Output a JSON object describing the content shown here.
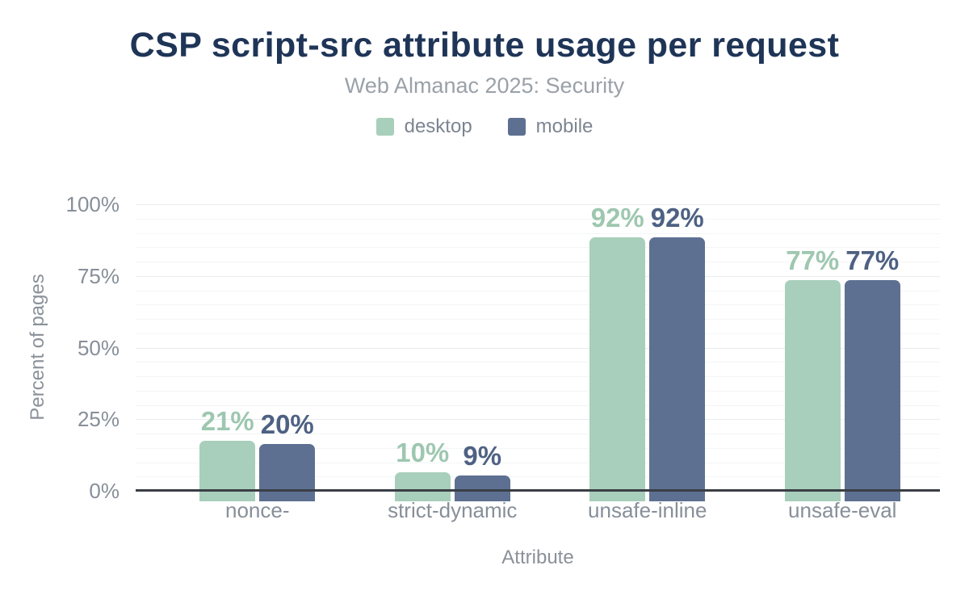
{
  "header": {
    "title": "CSP script-src attribute usage per request",
    "subtitle": "Web Almanac 2025: Security"
  },
  "colors": {
    "title": "#1f3557",
    "subtitle": "#9aa1a8",
    "axis_text": "#878f99",
    "major_grid": "#e9ebee",
    "minor_grid": "#f4f5f7",
    "axis_line": "#3a3f46"
  },
  "chart_data": {
    "type": "bar",
    "title": "CSP script-src attribute usage per request",
    "subtitle": "Web Almanac 2025: Security",
    "categories": [
      "nonce-",
      "strict-dynamic",
      "unsafe-inline",
      "unsafe-eval"
    ],
    "series": [
      {
        "name": "desktop",
        "color": "#a8cfbb",
        "label_color": "#9ec7b0",
        "values": [
          21,
          10,
          92,
          77
        ],
        "labels": [
          "21%",
          "10%",
          "92%",
          "77%"
        ]
      },
      {
        "name": "mobile",
        "color": "#5d7092",
        "label_color": "#4e6183",
        "values": [
          20,
          9,
          92,
          77
        ],
        "labels": [
          "20%",
          "9%",
          "92%",
          "77%"
        ]
      }
    ],
    "xlabel": "Attribute",
    "ylabel": "Percent of pages",
    "ylim": [
      0,
      100
    ],
    "yticks": [
      {
        "value": 0,
        "label": "0%"
      },
      {
        "value": 25,
        "label": "25%"
      },
      {
        "value": 50,
        "label": "50%"
      },
      {
        "value": 75,
        "label": "75%"
      },
      {
        "value": 100,
        "label": "100%"
      }
    ],
    "minor_tick_step": 5,
    "grid": true,
    "legend_position": "top"
  }
}
